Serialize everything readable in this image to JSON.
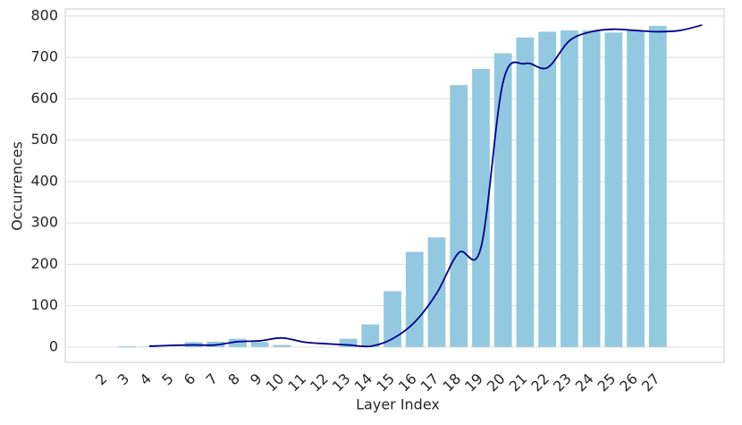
{
  "chart_data": {
    "type": "bar",
    "xlabel": "Layer Index",
    "ylabel": "Occurrences",
    "xlim": [
      0.2,
      30
    ],
    "ylim": [
      -37,
      817
    ],
    "xticks": [
      2,
      3,
      4,
      5,
      6,
      7,
      8,
      9,
      10,
      11,
      12,
      13,
      14,
      15,
      16,
      17,
      18,
      19,
      20,
      21,
      22,
      23,
      24,
      25,
      26,
      27
    ],
    "yticks": [
      0,
      100,
      200,
      300,
      400,
      500,
      600,
      700,
      800
    ],
    "grid": true,
    "series": [
      {
        "type": "bar",
        "color": "#93c9e0",
        "x": [
          2,
          3,
          4,
          5,
          6,
          7,
          8,
          9,
          10,
          11,
          12,
          13,
          14,
          15,
          16,
          17,
          18,
          19,
          20,
          21,
          22,
          23,
          24,
          25,
          26,
          27
        ],
        "values": [
          0,
          2,
          1,
          0,
          12,
          13,
          20,
          12,
          5,
          0,
          0,
          20,
          55,
          135,
          230,
          265,
          633,
          672,
          710,
          748,
          762,
          765,
          765,
          760,
          765,
          776
        ]
      },
      {
        "type": "line",
        "color": "#00008b",
        "x": [
          4,
          5,
          6,
          7,
          8,
          9,
          10,
          11,
          12,
          13,
          14,
          15,
          16,
          17,
          18,
          19,
          20,
          21,
          22,
          23,
          24,
          25,
          26,
          27,
          28,
          29
        ],
        "values": [
          2,
          4,
          5,
          5,
          13,
          15,
          22,
          12,
          8,
          5,
          2,
          20,
          60,
          130,
          228,
          240,
          640,
          685,
          675,
          740,
          762,
          768,
          765,
          762,
          765,
          778
        ]
      }
    ]
  }
}
